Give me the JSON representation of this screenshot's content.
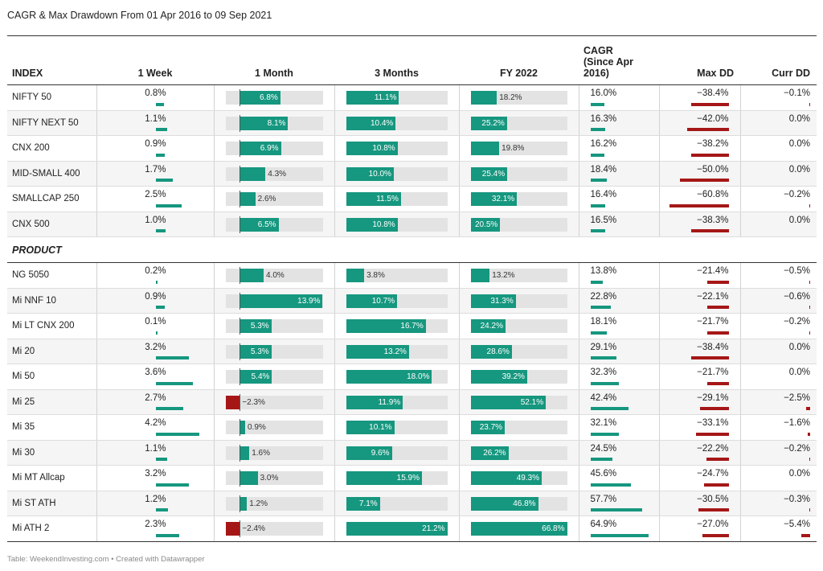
{
  "title": "CAGR & Max Drawdown From 01 Apr 2016 to 09 Sep 2021",
  "footer": "Table: WeekendInvesting.com • Created with Datawrapper",
  "colors": {
    "positive": "#16977f",
    "negative": "#a51717",
    "track": "#e3e3e3"
  },
  "columns": [
    "INDEX",
    "1 Week",
    "1 Month",
    "3 Months",
    "FY 2022",
    "CAGR (Since Apr 2016)",
    "Max DD",
    "Curr DD"
  ],
  "section_label": "PRODUCT",
  "chart_data": {
    "type": "table",
    "title": "CAGR & Max Drawdown From 01 Apr 2016 to 09 Sep 2021",
    "scales": {
      "week": [
        0,
        4.2
      ],
      "month": [
        -2.4,
        13.9
      ],
      "m3": [
        0,
        21.2
      ],
      "fy": [
        0,
        66.8
      ],
      "cagr": [
        0,
        64.9
      ],
      "maxdd": [
        0,
        -60.8
      ],
      "currdd": [
        0,
        -5.4
      ]
    },
    "index_rows": [
      {
        "name": "NIFTY 50",
        "week": 0.8,
        "month": 6.8,
        "m3": 11.1,
        "fy": 18.2,
        "cagr": 16.0,
        "maxdd": -38.4,
        "currdd": -0.1
      },
      {
        "name": "NIFTY NEXT 50",
        "week": 1.1,
        "month": 8.1,
        "m3": 10.4,
        "fy": 25.2,
        "cagr": 16.3,
        "maxdd": -42.0,
        "currdd": 0.0
      },
      {
        "name": "CNX 200",
        "week": 0.9,
        "month": 6.9,
        "m3": 10.8,
        "fy": 19.8,
        "cagr": 16.2,
        "maxdd": -38.2,
        "currdd": 0.0
      },
      {
        "name": "MID-SMALL 400",
        "week": 1.7,
        "month": 4.3,
        "m3": 10.0,
        "fy": 25.4,
        "cagr": 18.4,
        "maxdd": -50.0,
        "currdd": 0.0
      },
      {
        "name": "SMALLCAP 250",
        "week": 2.5,
        "month": 2.6,
        "m3": 11.5,
        "fy": 32.1,
        "cagr": 16.4,
        "maxdd": -60.8,
        "currdd": -0.2
      },
      {
        "name": "CNX 500",
        "week": 1.0,
        "month": 6.5,
        "m3": 10.8,
        "fy": 20.5,
        "cagr": 16.5,
        "maxdd": -38.3,
        "currdd": 0.0
      }
    ],
    "product_rows": [
      {
        "name": "NG 5050",
        "week": 0.2,
        "month": 4.0,
        "m3": 3.8,
        "fy": 13.2,
        "cagr": 13.8,
        "maxdd": -21.4,
        "currdd": -0.5
      },
      {
        "name": "Mi NNF 10",
        "week": 0.9,
        "month": 13.9,
        "m3": 10.7,
        "fy": 31.3,
        "cagr": 22.8,
        "maxdd": -22.1,
        "currdd": -0.6
      },
      {
        "name": "Mi LT CNX 200",
        "week": 0.1,
        "month": 5.3,
        "m3": 16.7,
        "fy": 24.2,
        "cagr": 18.1,
        "maxdd": -21.7,
        "currdd": -0.2
      },
      {
        "name": "Mi 20",
        "week": 3.2,
        "month": 5.3,
        "m3": 13.2,
        "fy": 28.6,
        "cagr": 29.1,
        "maxdd": -38.4,
        "currdd": 0.0
      },
      {
        "name": "Mi 50",
        "week": 3.6,
        "month": 5.4,
        "m3": 18.0,
        "fy": 39.2,
        "cagr": 32.3,
        "maxdd": -21.7,
        "currdd": 0.0
      },
      {
        "name": "Mi 25",
        "week": 2.7,
        "month": -2.3,
        "m3": 11.9,
        "fy": 52.1,
        "cagr": 42.4,
        "maxdd": -29.1,
        "currdd": -2.5
      },
      {
        "name": "Mi 35",
        "week": 4.2,
        "month": 0.9,
        "m3": 10.1,
        "fy": 23.7,
        "cagr": 32.1,
        "maxdd": -33.1,
        "currdd": -1.6
      },
      {
        "name": "Mi 30",
        "week": 1.1,
        "month": 1.6,
        "m3": 9.6,
        "fy": 26.2,
        "cagr": 24.5,
        "maxdd": -22.2,
        "currdd": -0.2
      },
      {
        "name": "Mi MT Allcap",
        "week": 3.2,
        "month": 3.0,
        "m3": 15.9,
        "fy": 49.3,
        "cagr": 45.6,
        "maxdd": -24.7,
        "currdd": 0.0
      },
      {
        "name": "Mi ST ATH",
        "week": 1.2,
        "month": 1.2,
        "m3": 7.1,
        "fy": 46.8,
        "cagr": 57.7,
        "maxdd": -30.5,
        "currdd": -0.3
      },
      {
        "name": "Mi ATH 2",
        "week": 2.3,
        "month": -2.4,
        "m3": 21.2,
        "fy": 66.8,
        "cagr": 64.9,
        "maxdd": -27.0,
        "currdd": -5.4
      }
    ]
  }
}
